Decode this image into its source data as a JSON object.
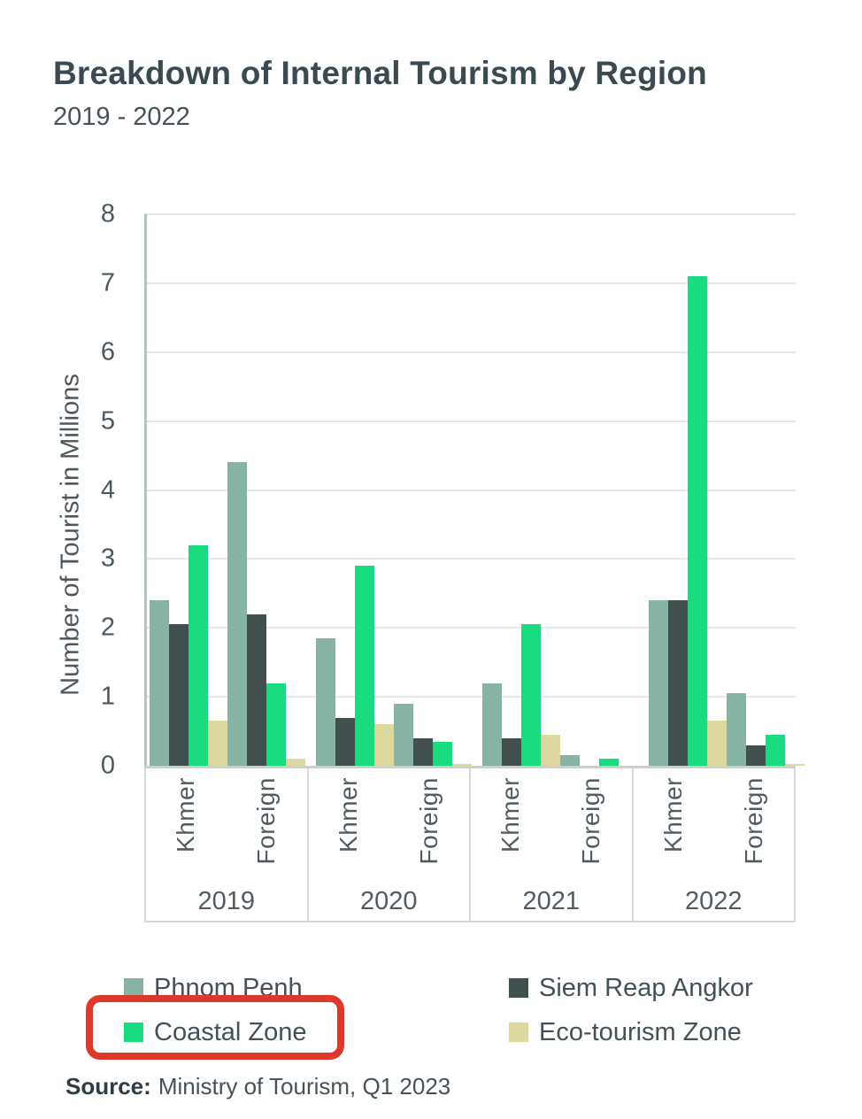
{
  "chart_data": {
    "type": "bar",
    "title": "Breakdown of Internal Tourism by Region",
    "subtitle": "2019 - 2022",
    "ylabel": "Number of Tourist in Millions",
    "ylim": [
      0,
      8
    ],
    "yticks": [
      0,
      1,
      2,
      3,
      4,
      5,
      6,
      7,
      8
    ],
    "grid": "horizontal",
    "legend_position": "bottom",
    "group_labels": [
      "2019",
      "2020",
      "2021",
      "2022"
    ],
    "subcategories": [
      "Khmer",
      "Foreign"
    ],
    "categories": [
      "2019 Khmer",
      "2019 Foreign",
      "2020 Khmer",
      "2020 Foreign",
      "2021 Khmer",
      "2021 Foreign",
      "2022 Khmer",
      "2022 Foreign"
    ],
    "series": [
      {
        "name": "Phnom Penh",
        "color": "#87b3a5",
        "values": [
          2.4,
          4.4,
          1.85,
          0.9,
          1.2,
          0.15,
          2.4,
          1.05
        ]
      },
      {
        "name": "Siem Reap Angkor",
        "color": "#41504f",
        "values": [
          2.05,
          2.2,
          0.7,
          0.4,
          0.4,
          0,
          2.4,
          0.3
        ]
      },
      {
        "name": "Coastal Zone",
        "color": "#1adb7f",
        "values": [
          3.2,
          1.2,
          2.9,
          0.35,
          2.05,
          0.1,
          7.1,
          0.45
        ]
      },
      {
        "name": "Eco-tourism Zone",
        "color": "#ddd89e",
        "values": [
          0.65,
          0.1,
          0.6,
          0.03,
          0.45,
          0,
          0.65,
          0.02
        ]
      }
    ],
    "annotation": {
      "type": "highlight-box",
      "target": "Coastal Zone",
      "color": "#dc392c"
    }
  },
  "source": {
    "label": "Source:",
    "text": "Ministry of Tourism, Q1 2023"
  }
}
